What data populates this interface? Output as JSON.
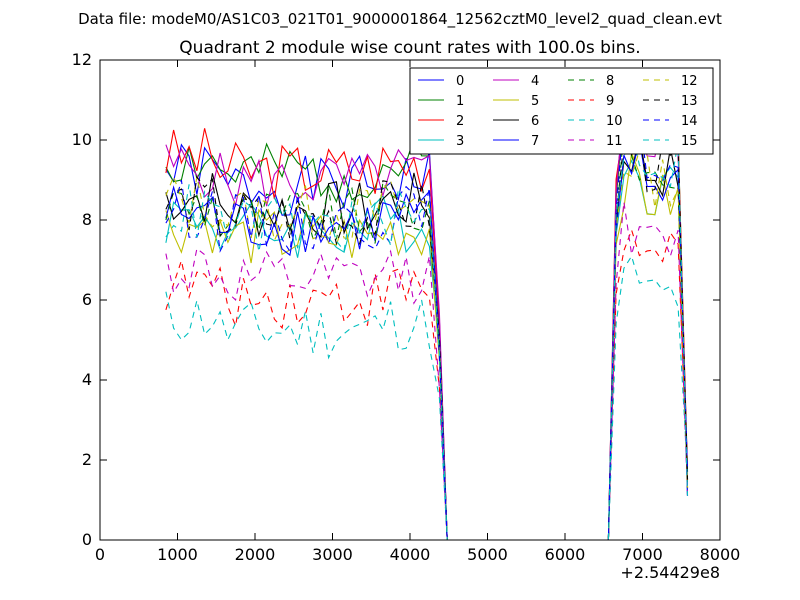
{
  "suptitle": "Data file: modeM0/AS1C03_021T01_9000001864_12562cztM0_level2_quad_clean.evt",
  "chart_data": {
    "type": "line",
    "title": "Quadrant 2 module wise count rates with 100.0s bins.",
    "xlabel": "",
    "ylabel": "",
    "xlim": [
      0,
      8000
    ],
    "ylim": [
      0,
      12
    ],
    "x_offset_label": "+2.54429e8",
    "x_ticks": [
      0,
      1000,
      2000,
      3000,
      4000,
      5000,
      6000,
      7000,
      8000
    ],
    "y_ticks": [
      0,
      2,
      4,
      6,
      8,
      10,
      12
    ],
    "legend": {
      "placement": "top-right",
      "columns": 4
    },
    "series": [
      {
        "name": "0",
        "color": "#0000ff",
        "dash": "solid",
        "base": 9.2,
        "late": 10.8,
        "seed": 1
      },
      {
        "name": "1",
        "color": "#008000",
        "dash": "solid",
        "base": 9.5,
        "late": 10.4,
        "seed": 2
      },
      {
        "name": "2",
        "color": "#ff0000",
        "dash": "solid",
        "base": 9.6,
        "late": 11.0,
        "seed": 3
      },
      {
        "name": "3",
        "color": "#00bfbf",
        "dash": "solid",
        "base": 8.1,
        "late": 9.3,
        "seed": 4
      },
      {
        "name": "4",
        "color": "#bf00bf",
        "dash": "solid",
        "base": 9.3,
        "late": 10.6,
        "seed": 5
      },
      {
        "name": "5",
        "color": "#bfbf00",
        "dash": "solid",
        "base": 7.9,
        "late": 9.0,
        "seed": 6
      },
      {
        "name": "6",
        "color": "#000000",
        "dash": "solid",
        "base": 8.6,
        "late": 9.7,
        "seed": 7
      },
      {
        "name": "7",
        "color": "#0000ff",
        "dash": "solid",
        "base": 8.2,
        "late": 9.4,
        "seed": 8
      },
      {
        "name": "8",
        "color": "#008000",
        "dash": "dashed",
        "base": 8.4,
        "late": 9.6,
        "seed": 9
      },
      {
        "name": "9",
        "color": "#ff0000",
        "dash": "dashed",
        "base": 6.4,
        "late": 7.5,
        "seed": 10
      },
      {
        "name": "10",
        "color": "#00bfbf",
        "dash": "dashed",
        "base": 5.6,
        "late": 6.6,
        "seed": 11
      },
      {
        "name": "11",
        "color": "#bf00bf",
        "dash": "dashed",
        "base": 6.8,
        "late": 7.8,
        "seed": 12
      },
      {
        "name": "12",
        "color": "#bfbf00",
        "dash": "dashed",
        "base": 8.5,
        "late": 9.5,
        "seed": 13
      },
      {
        "name": "13",
        "color": "#000000",
        "dash": "dashed",
        "base": 8.4,
        "late": 9.8,
        "seed": 14
      },
      {
        "name": "14",
        "color": "#0000ff",
        "dash": "dashed",
        "base": 8.3,
        "late": 10.0,
        "seed": 15
      },
      {
        "name": "15",
        "color": "#00bfbf",
        "dash": "dashed",
        "base": 8.2,
        "late": 9.9,
        "seed": 16
      }
    ],
    "time_segments": {
      "active1": [
        850,
        4250
      ],
      "drop_to_zero": [
        4250,
        4480
      ],
      "gap_zero": [
        4480,
        6560
      ],
      "active2": [
        6560,
        7580
      ],
      "bin": 100
    }
  }
}
